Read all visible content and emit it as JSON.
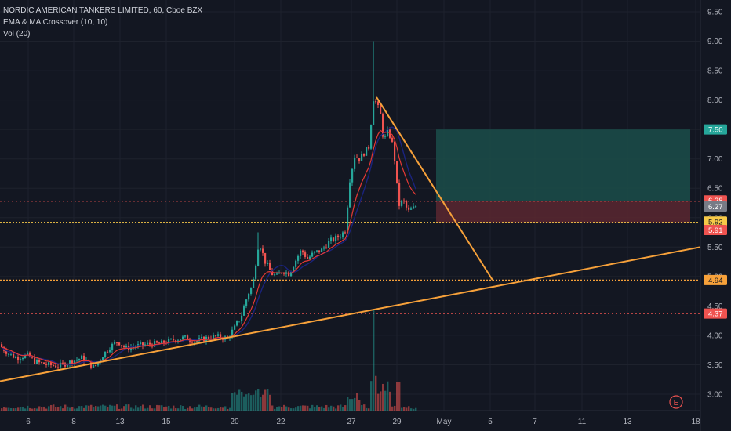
{
  "legend": {
    "title": "NORDIC AMERICAN TANKERS LIMITED, 60, Cboe BZX",
    "indicator1": "EMA & MA Crossover (10, 10)",
    "indicator2": "Vol (20)"
  },
  "colors": {
    "background": "#131722",
    "grid": "#1e222d",
    "up": "#26a69a",
    "down": "#ef5350",
    "ema": "#e53935",
    "ma": "#1a237e",
    "trendline": "#f7a13a",
    "profit_zone": "#1b4e4a",
    "loss_zone": "#5a2730"
  },
  "chart_data": {
    "type": "candlestick",
    "y_axis": {
      "ticks": [
        "3.00",
        "3.50",
        "4.00",
        "4.50",
        "5.00",
        "5.50",
        "6.00",
        "6.50",
        "7.00",
        "7.50",
        "8.00",
        "8.50",
        "9.00",
        "9.50"
      ],
      "ylim": [
        2.68,
        9.7
      ]
    },
    "x_axis": {
      "ticks": [
        "6",
        "8",
        "13",
        "15",
        "20",
        "22",
        "27",
        "29",
        "May",
        "5",
        "7",
        "11",
        "13",
        "18"
      ]
    },
    "price_labels": [
      {
        "value": 7.5,
        "text": "7.50",
        "color": "#26a69a"
      },
      {
        "value": 6.28,
        "text": "6.28",
        "color": "#ef5350"
      },
      {
        "value": 6.27,
        "text": "6.27",
        "color": "#787b86"
      },
      {
        "value": 5.92,
        "text": "5.92",
        "color": "#f7c948"
      },
      {
        "value": 5.91,
        "text": "5.91",
        "color": "#ef5350"
      },
      {
        "value": 4.94,
        "text": "4.94",
        "color": "#f7a13a"
      },
      {
        "value": 4.37,
        "text": "4.37",
        "color": "#ef5350"
      }
    ],
    "horizontal_lines": [
      {
        "value": 6.28,
        "style": "dotted",
        "color": "#ef5350"
      },
      {
        "value": 5.92,
        "style": "dotted",
        "color": "#f7c948"
      },
      {
        "value": 4.94,
        "style": "dotted",
        "color": "#f7a13a"
      },
      {
        "value": 4.37,
        "style": "dotted",
        "color": "#ef5350"
      }
    ],
    "position_box": {
      "entry": 6.28,
      "target": 7.5,
      "stop": 5.92
    },
    "trendlines": [
      {
        "from": [
          0.0,
          3.22
        ],
        "to": [
          1.0,
          5.5
        ]
      },
      {
        "from": [
          0.515,
          8.05
        ],
        "to": [
          0.674,
          4.94
        ]
      }
    ],
    "candles": [],
    "volume": [],
    "event_marker": "E"
  }
}
